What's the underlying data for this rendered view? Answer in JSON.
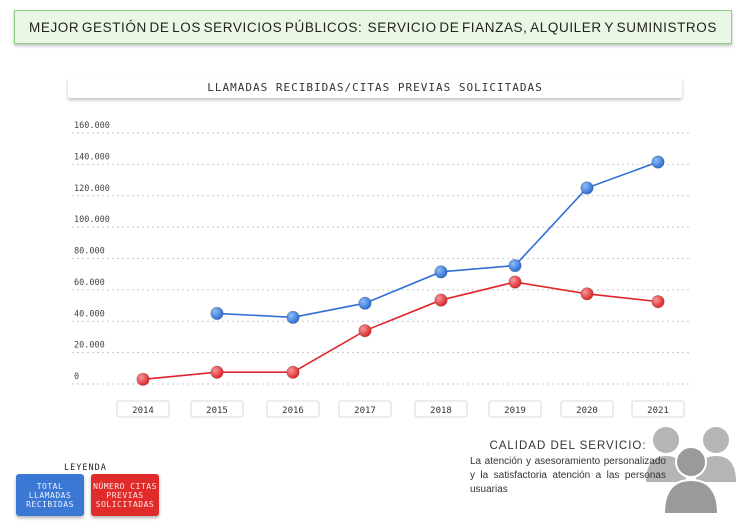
{
  "banner": {
    "words": [
      "MEJOR",
      "GESTIÓN",
      "DE",
      "LOS",
      "SERVICIOS",
      "PÚBLICOS:",
      "",
      "SERVICIO",
      "DE",
      "FIANZAS,",
      "ALQUILER",
      "Y",
      "SUMINISTROS"
    ]
  },
  "chart_data": {
    "type": "line",
    "title": "LLAMADAS RECIBIDAS/CITAS PREVIAS SOLICITADAS",
    "categories": [
      "2014",
      "2015",
      "2016",
      "2017",
      "2018",
      "2019",
      "2020",
      "2021"
    ],
    "y_tick_labels": [
      "0",
      "20.000",
      "40.000",
      "60.000",
      "80.000",
      "100.000",
      "120.000",
      "140.000",
      "160.000"
    ],
    "ylim": [
      0,
      160000
    ],
    "grid": true,
    "series": [
      {
        "name": "TOTAL LLAMADAS RECIBIDAS",
        "color": "#2f6fd6",
        "values": [
          null,
          45000,
          42500,
          51500,
          71500,
          75500,
          125000,
          141500
        ]
      },
      {
        "name": "NÚMERO CITAS PREVIAS SOLICITADAS",
        "color": "#e0262b",
        "values": [
          3000,
          7500,
          7500,
          34000,
          53500,
          65000,
          57500,
          52500
        ]
      }
    ]
  },
  "legend": {
    "title": "LEYENDA",
    "blue_label": "TOTAL LLAMADAS RECIBIDAS",
    "red_label": "NÚMERO CITAS PREVIAS SOLICITADAS"
  },
  "quality": {
    "title": "CALIDAD DEL SERVICIO:",
    "text": "La atención y asesoramiento personalizado y la satisfactoria atención a las personas usuarias"
  },
  "icons": {
    "people": "people-group-icon"
  }
}
